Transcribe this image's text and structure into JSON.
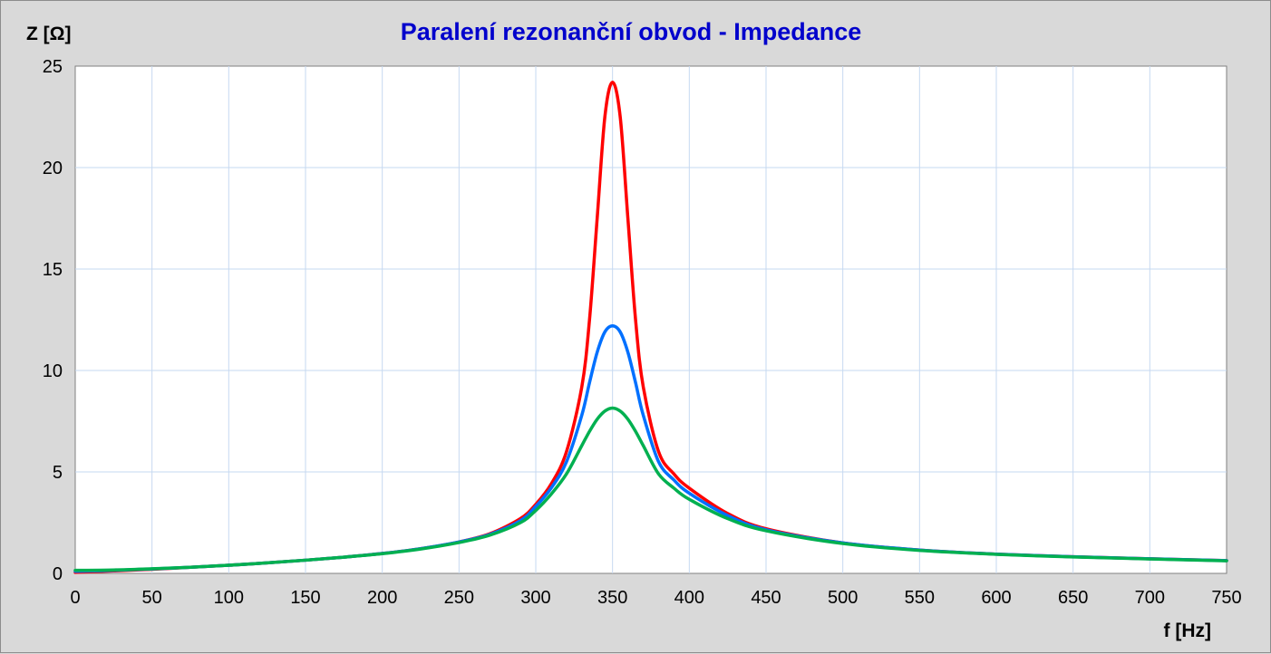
{
  "chart_data": {
    "type": "line",
    "title": "Paralení rezonanční obvod - Impedance",
    "xlabel": "f [Hz]",
    "ylabel": "Z [Ω]",
    "xlim": [
      0,
      750
    ],
    "ylim": [
      0,
      25
    ],
    "x_ticks": [
      0,
      50,
      100,
      150,
      200,
      250,
      300,
      350,
      400,
      450,
      500,
      550,
      600,
      650,
      700,
      750
    ],
    "y_ticks": [
      0,
      5,
      10,
      15,
      20,
      25
    ],
    "grid": true,
    "legend": "none",
    "colors": {
      "title": "#0000cc",
      "grid": "#c6d9f1",
      "plot_bg": "#ffffff",
      "frame_bg": "#d9d9d9"
    },
    "x": [
      0,
      25,
      50,
      75,
      100,
      125,
      150,
      175,
      200,
      225,
      250,
      270,
      290,
      300,
      310,
      320,
      330,
      335,
      340,
      345,
      350,
      355,
      360,
      365,
      370,
      380,
      390,
      400,
      425,
      450,
      500,
      550,
      600,
      650,
      700,
      750
    ],
    "series": [
      {
        "color": "#ff0000",
        "values": [
          0.05,
          0.12,
          0.2,
          0.3,
          0.4,
          0.52,
          0.65,
          0.8,
          0.98,
          1.22,
          1.55,
          1.95,
          2.7,
          3.4,
          4.4,
          6.0,
          9.2,
          12.5,
          17.5,
          22.5,
          24.2,
          22.5,
          17.5,
          12.5,
          9.2,
          6.0,
          4.9,
          4.2,
          2.95,
          2.2,
          1.5,
          1.15,
          0.95,
          0.82,
          0.72,
          0.63
        ]
      },
      {
        "color": "#0070ff",
        "values": [
          0.1,
          0.15,
          0.22,
          0.3,
          0.4,
          0.52,
          0.65,
          0.8,
          0.98,
          1.22,
          1.55,
          1.92,
          2.6,
          3.3,
          4.2,
          5.5,
          7.8,
          9.4,
          10.9,
          11.9,
          12.2,
          11.9,
          10.9,
          9.4,
          7.8,
          5.5,
          4.6,
          3.95,
          2.85,
          2.15,
          1.5,
          1.15,
          0.95,
          0.82,
          0.72,
          0.63
        ]
      },
      {
        "color": "#00b050",
        "values": [
          0.15,
          0.17,
          0.23,
          0.3,
          0.4,
          0.52,
          0.65,
          0.8,
          0.97,
          1.2,
          1.52,
          1.88,
          2.5,
          3.1,
          3.9,
          4.9,
          6.3,
          7.0,
          7.6,
          8.0,
          8.15,
          8.0,
          7.6,
          7.0,
          6.3,
          4.9,
          4.2,
          3.65,
          2.7,
          2.1,
          1.47,
          1.13,
          0.94,
          0.81,
          0.71,
          0.62
        ]
      }
    ]
  }
}
